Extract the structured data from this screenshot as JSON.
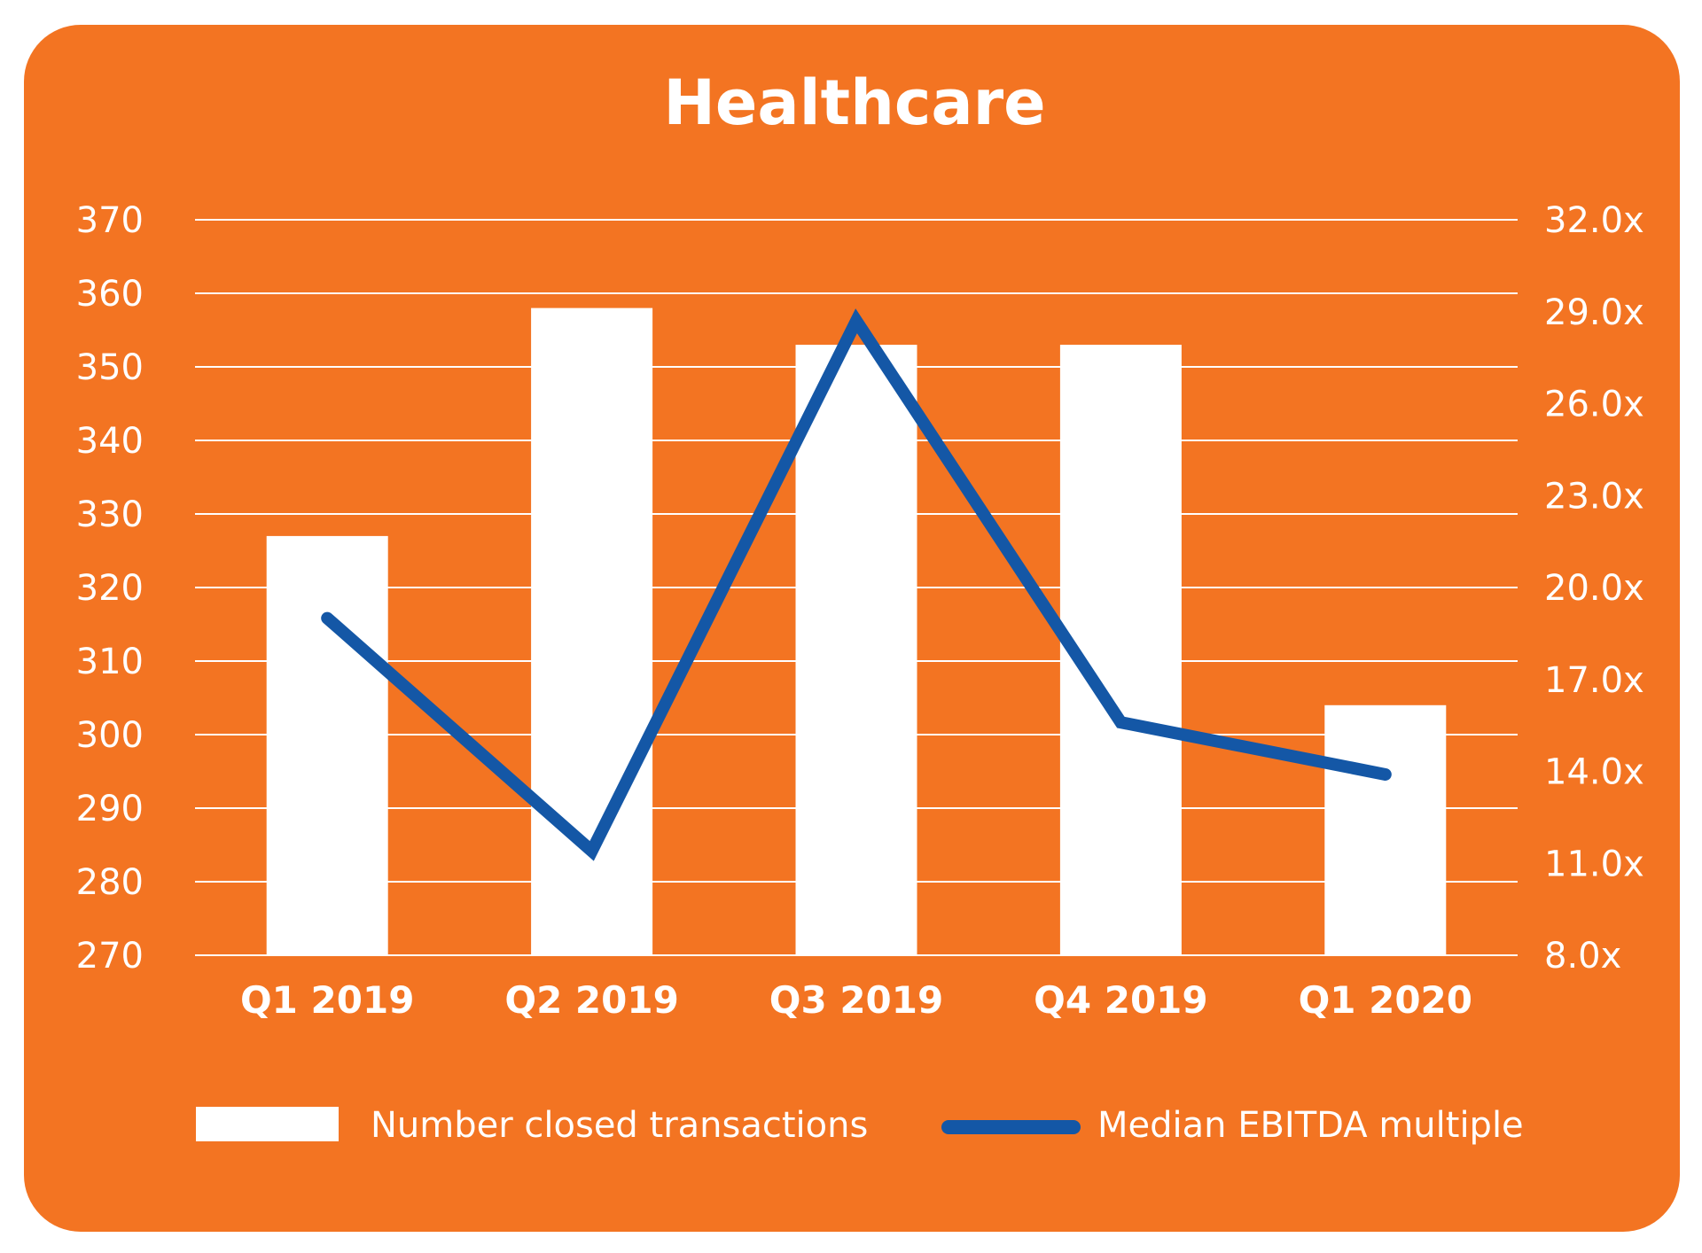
{
  "chart_data": {
    "type": "bar",
    "title": "Healthcare",
    "categories": [
      "Q1 2019",
      "Q2 2019",
      "Q3 2019",
      "Q4 2019",
      "Q1 2020"
    ],
    "series": [
      {
        "name": "Number closed transactions",
        "type": "bar",
        "axis": "left",
        "values": [
          327,
          358,
          353,
          353,
          304
        ]
      },
      {
        "name": "Median EBITDA multiple",
        "type": "line",
        "axis": "right",
        "values": [
          19.0,
          11.4,
          28.7,
          15.6,
          13.9
        ]
      }
    ],
    "ylim_left": [
      270,
      370
    ],
    "yticks_left": [
      "270",
      "280",
      "290",
      "300",
      "310",
      "320",
      "330",
      "340",
      "350",
      "360",
      "370"
    ],
    "ylim_right": [
      8.0,
      32.0
    ],
    "yticks_right": [
      "8.0x",
      "11.0x",
      "14.0x",
      "17.0x",
      "20.0x",
      "23.0x",
      "26.0x",
      "29.0x",
      "32.0x"
    ],
    "grid": true,
    "legend_position": "bottom",
    "colors": {
      "background": "#F37422",
      "bar": "#FFFFFF",
      "line": "#1457A6",
      "text": "#FFFFFF"
    }
  }
}
